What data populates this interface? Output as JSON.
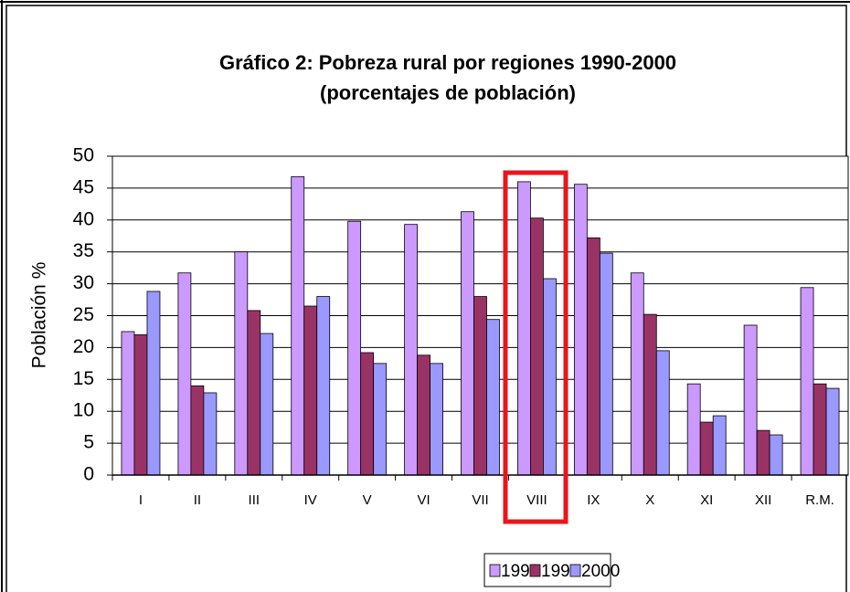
{
  "chart_data": {
    "type": "bar",
    "title": "Gráfico 2: Pobreza rural por regiones 1990-2000",
    "subtitle": "(porcentajes de población)",
    "y_label": "Población %",
    "categories": [
      "I",
      "II",
      "III",
      "IV",
      "V",
      "VI",
      "VII",
      "VIII",
      "IX",
      "X",
      "XI",
      "XII",
      "R.M."
    ],
    "series": [
      {
        "name": "1990",
        "color": "#cc99ff",
        "values": [
          22.5,
          31.7,
          35,
          46.8,
          39.8,
          39.3,
          41.3,
          46,
          45.6,
          31.7,
          14.3,
          23.5,
          29.4
        ]
      },
      {
        "name": "1998",
        "color": "#993366",
        "values": [
          22,
          14,
          25.8,
          26.5,
          19.2,
          18.8,
          28,
          40.3,
          37.2,
          25.2,
          8.3,
          7,
          14.3
        ]
      },
      {
        "name": "2000",
        "color": "#9999ff",
        "values": [
          28.8,
          12.9,
          22.2,
          28,
          17.5,
          17.5,
          24.4,
          30.8,
          34.8,
          19.5,
          9.3,
          6.3,
          13.6
        ]
      }
    ],
    "ylim": [
      0,
      50
    ],
    "yticks": [
      0,
      5,
      10,
      15,
      20,
      25,
      30,
      35,
      40,
      45,
      50
    ],
    "grid": true,
    "legend": "bottom"
  }
}
